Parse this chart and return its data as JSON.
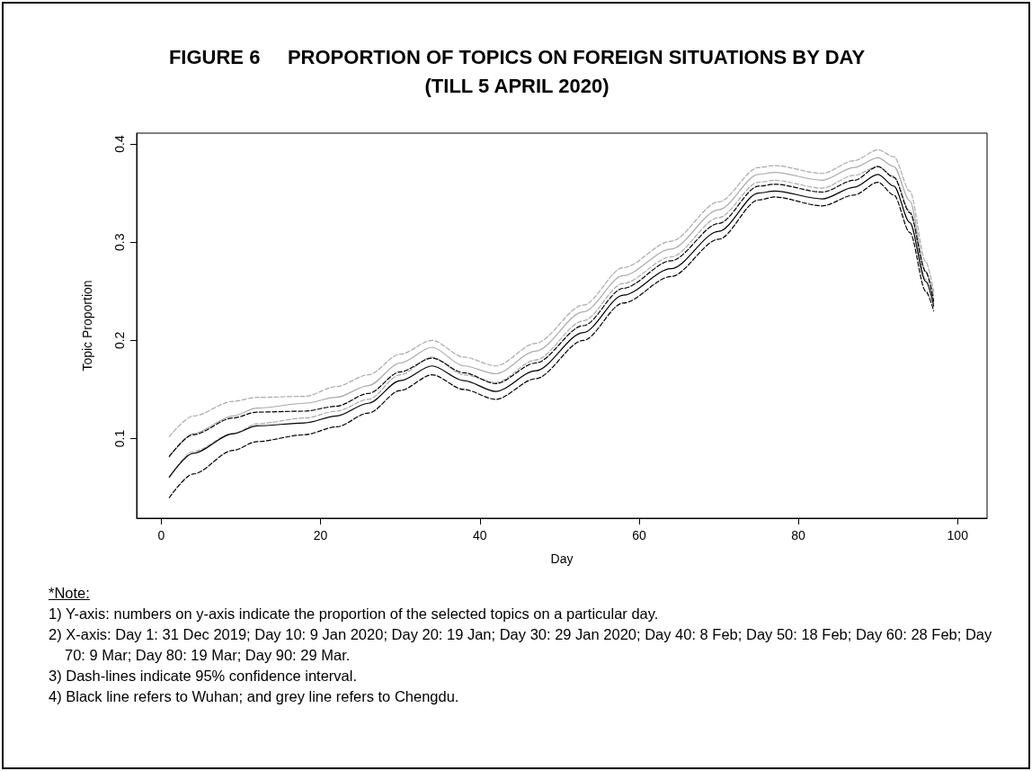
{
  "chart_data": {
    "type": "line",
    "title": "FIGURE 6     PROPORTION OF TOPICS ON FOREIGN SITUATIONS BY DAY\n(TILL 5 APRIL 2020)",
    "xlabel": "Day",
    "ylabel": "Topic Proportion",
    "x": [
      1,
      4,
      9,
      12,
      18,
      22,
      26,
      30,
      34,
      38,
      42,
      47,
      53,
      58,
      64,
      70,
      75,
      77,
      83,
      87,
      90,
      92,
      94,
      96,
      97
    ],
    "series": [
      {
        "color": "#aaaaaa",
        "line_style": "dashed",
        "values": [
          0.06,
          0.087,
          0.105,
          0.115,
          0.121,
          0.128,
          0.14,
          0.165,
          0.183,
          0.165,
          0.157,
          0.18,
          0.22,
          0.258,
          0.285,
          0.325,
          0.361,
          0.363,
          0.355,
          0.368,
          0.377,
          0.367,
          0.332,
          0.262,
          0.238
        ]
      },
      {
        "color": "#aaaaaa",
        "line_style": "dashed",
        "values": [
          0.102,
          0.123,
          0.138,
          0.142,
          0.143,
          0.153,
          0.165,
          0.186,
          0.2,
          0.183,
          0.174,
          0.197,
          0.236,
          0.274,
          0.301,
          0.341,
          0.376,
          0.378,
          0.37,
          0.383,
          0.394,
          0.387,
          0.352,
          0.28,
          0.25
        ]
      },
      {
        "color": "#aaaaaa",
        "values": [
          0.081,
          0.105,
          0.123,
          0.131,
          0.136,
          0.142,
          0.154,
          0.177,
          0.193,
          0.174,
          0.166,
          0.189,
          0.229,
          0.266,
          0.293,
          0.333,
          0.369,
          0.371,
          0.363,
          0.376,
          0.386,
          0.377,
          0.342,
          0.27,
          0.245
        ]
      },
      {
        "color": "#000000",
        "line_style": "dashed",
        "values": [
          0.04,
          0.064,
          0.088,
          0.097,
          0.104,
          0.112,
          0.126,
          0.149,
          0.165,
          0.15,
          0.14,
          0.161,
          0.2,
          0.238,
          0.265,
          0.303,
          0.343,
          0.346,
          0.337,
          0.348,
          0.361,
          0.348,
          0.31,
          0.25,
          0.23
        ]
      },
      {
        "color": "#000000",
        "line_style": "dashed",
        "values": [
          0.082,
          0.104,
          0.121,
          0.127,
          0.128,
          0.133,
          0.146,
          0.168,
          0.182,
          0.167,
          0.156,
          0.177,
          0.215,
          0.253,
          0.281,
          0.319,
          0.357,
          0.359,
          0.351,
          0.363,
          0.377,
          0.366,
          0.33,
          0.27,
          0.24
        ]
      },
      {
        "color": "#000000",
        "values": [
          0.061,
          0.085,
          0.105,
          0.113,
          0.116,
          0.123,
          0.136,
          0.159,
          0.174,
          0.159,
          0.148,
          0.169,
          0.208,
          0.246,
          0.273,
          0.311,
          0.35,
          0.352,
          0.344,
          0.356,
          0.369,
          0.357,
          0.32,
          0.26,
          0.235
        ]
      }
    ],
    "xlim": [
      -3.1,
      103.7
    ],
    "xticks": [
      0,
      20,
      40,
      60,
      80,
      100
    ],
    "ylim": [
      0.019,
      0.411
    ],
    "yticks": [
      0.1,
      0.2,
      0.3,
      0.4
    ],
    "marker": "none",
    "line_style": "solid",
    "annotations": [
      "*Note:",
      "1) Y-axis: numbers on y-axis indicate the proportion of the selected topics on a particular day.",
      "2) X-axis: Day 1: 31 Dec 2019; Day 10: 9 Jan 2020; Day 20: 19 Jan;  Day 30: 29 Jan 2020; Day 40: 8 Feb; Day 50: 18 Feb; Day 60: 28 Feb; Day 70: 9 Mar; Day 80: 19 Mar; Day 90: 29 Mar.",
      "3) Dash-lines indicate 95% confidence interval.",
      "4) Black line refers to Wuhan; and grey line refers to Chengdu."
    ]
  }
}
